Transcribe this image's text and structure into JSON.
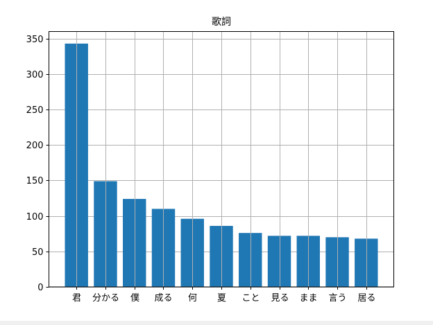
{
  "chart_data": {
    "type": "bar",
    "title": "歌詞",
    "xlabel": "",
    "ylabel": "",
    "categories": [
      "君",
      "分かる",
      "僕",
      "成る",
      "何",
      "夏",
      "こと",
      "見る",
      "まま",
      "言う",
      "居る"
    ],
    "values": [
      343,
      149,
      124,
      110,
      96,
      86,
      76,
      72,
      72,
      70,
      68
    ],
    "ylim": [
      0,
      360
    ],
    "yticks": [
      0,
      50,
      100,
      150,
      200,
      250,
      300,
      350
    ],
    "grid": true,
    "bar_color": "#1f77b4",
    "grid_color": "#b0b0b0"
  }
}
